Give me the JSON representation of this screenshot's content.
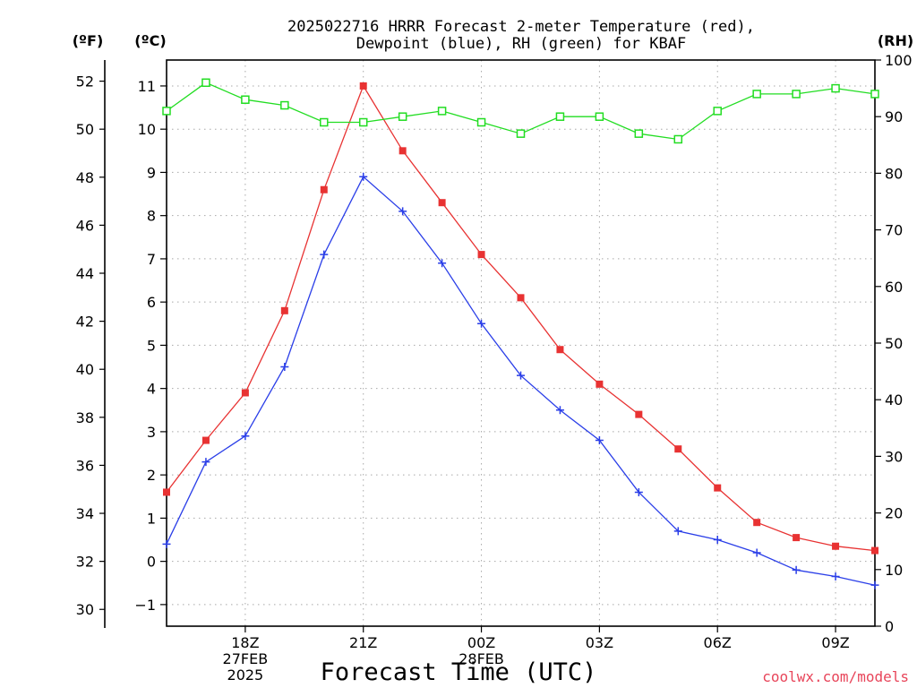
{
  "chart_data": {
    "type": "line",
    "title_lines": [
      "2025022716 HRRR Forecast 2-meter Temperature (red),",
      "Dewpoint (blue), RH (green) for KBAF"
    ],
    "xlabel": "Forecast Time (UTC)",
    "x_hours": [
      16,
      17,
      18,
      19,
      20,
      21,
      22,
      23,
      24,
      25,
      26,
      27,
      28,
      29,
      30,
      31,
      32,
      33,
      34
    ],
    "x_range": [
      16,
      34
    ],
    "x_ticks": [
      {
        "hour": 18,
        "lines": [
          "18Z",
          "27FEB",
          "2025"
        ]
      },
      {
        "hour": 21,
        "lines": [
          "21Z"
        ]
      },
      {
        "hour": 24,
        "lines": [
          "00Z",
          "28FEB"
        ]
      },
      {
        "hour": 27,
        "lines": [
          "03Z"
        ]
      },
      {
        "hour": 30,
        "lines": [
          "06Z"
        ]
      },
      {
        "hour": 33,
        "lines": [
          "09Z"
        ]
      }
    ],
    "y_left_celsius": {
      "label": "(ºC)",
      "range": [
        -1.5,
        11.6
      ],
      "ticks": [
        -1,
        0,
        1,
        2,
        3,
        4,
        5,
        6,
        7,
        8,
        9,
        10,
        11
      ]
    },
    "y_left_fahrenheit": {
      "label": "(ºF)",
      "ticks": [
        30,
        32,
        34,
        36,
        38,
        40,
        42,
        44,
        46,
        48,
        50,
        52
      ]
    },
    "y_right_rh": {
      "label": "(RH)",
      "range": [
        0,
        100
      ],
      "ticks": [
        0,
        10,
        20,
        30,
        40,
        50,
        60,
        70,
        80,
        90,
        100
      ]
    },
    "series": [
      {
        "name": "Temperature",
        "color": "#e83232",
        "axis": "celsius",
        "marker": "filled-square",
        "values": [
          1.6,
          2.8,
          3.9,
          5.8,
          8.6,
          11.0,
          9.5,
          8.3,
          7.1,
          6.1,
          4.9,
          4.1,
          3.4,
          2.6,
          1.7,
          0.9,
          0.55,
          0.35,
          0.25
        ]
      },
      {
        "name": "Dewpoint",
        "color": "#2a3ee8",
        "axis": "celsius",
        "marker": "plus",
        "values": [
          0.4,
          2.3,
          2.9,
          4.5,
          7.1,
          8.9,
          8.1,
          6.9,
          5.5,
          4.3,
          3.5,
          2.8,
          1.6,
          0.7,
          0.5,
          0.2,
          -0.2,
          -0.35,
          -0.55
        ]
      },
      {
        "name": "RH",
        "color": "#22dd22",
        "axis": "rh",
        "marker": "open-square",
        "values": [
          91,
          96,
          93,
          92,
          89,
          89,
          90,
          91,
          89,
          87,
          90,
          90,
          87,
          86,
          91,
          94,
          94,
          95,
          94
        ]
      }
    ]
  },
  "watermark": "coolwx.com/models"
}
